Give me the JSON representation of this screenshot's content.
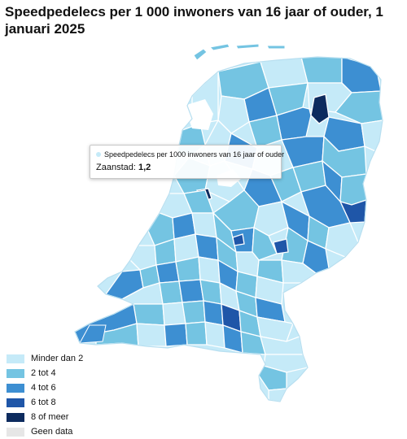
{
  "title": "Speedpedelecs per 1 000 inwoners van 16 jaar of ouder, 1 januari 2025",
  "tooltip": {
    "series_label": "Speedpedelecs per 1000 inwoners van 16 jaar of ouder",
    "municipality": "Zaanstad",
    "value": "1,2",
    "dot_color": "#c5eaf8"
  },
  "legend": [
    {
      "label": "Minder dan 2",
      "color": "#c5eaf8"
    },
    {
      "label": "2 tot 4",
      "color": "#74c4e2"
    },
    {
      "label": "4 tot 6",
      "color": "#3d8fd2"
    },
    {
      "label": "6 tot 8",
      "color": "#1f56a8"
    },
    {
      "label": "8 of meer",
      "color": "#0d2b5e"
    },
    {
      "label": "Geen data",
      "color": "#e6e6e6"
    }
  ]
}
